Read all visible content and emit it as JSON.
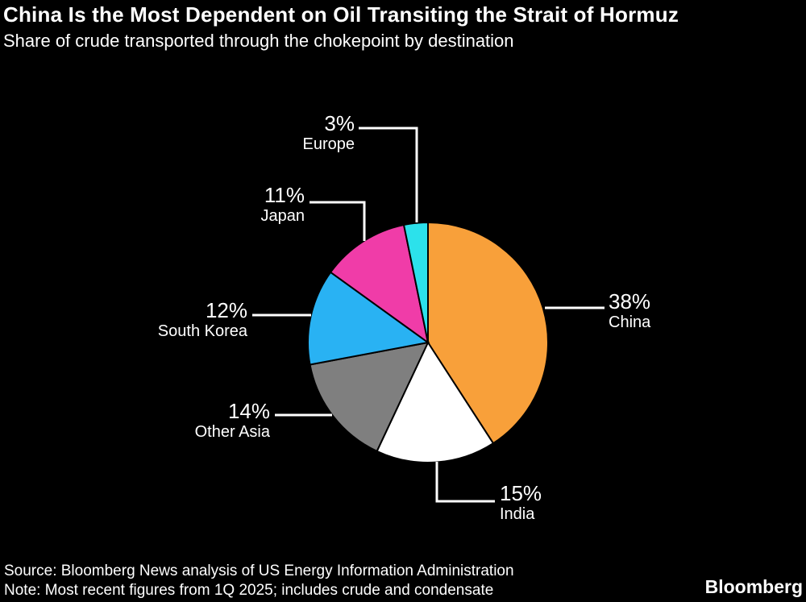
{
  "header": {
    "title": "China Is the Most Dependent on Oil Transiting the Strait of Hormuz",
    "subtitle": "Share of crude transported through the chokepoint by destination"
  },
  "chart_data": {
    "type": "pie",
    "title": "China Is the Most Dependent on Oil Transiting the Strait of Hormuz",
    "subtitle": "Share of crude transported through the chokepoint by destination",
    "unit": "%",
    "start_angle_deg": 0,
    "direction": "clockwise",
    "background": "#000000",
    "text_color": "#FFFFFF",
    "slices": [
      {
        "label": "China",
        "value": 38,
        "display": "38%",
        "color": "#F8A03A"
      },
      {
        "label": "India",
        "value": 15,
        "display": "15%",
        "color": "#FFFFFF"
      },
      {
        "label": "Other Asia",
        "value": 14,
        "display": "14%",
        "color": "#7F7F7F"
      },
      {
        "label": "South Korea",
        "value": 12,
        "display": "12%",
        "color": "#29B2F3"
      },
      {
        "label": "Japan",
        "value": 11,
        "display": "11%",
        "color": "#F03CA8"
      },
      {
        "label": "Europe",
        "value": 3,
        "display": "3%",
        "color": "#2CE1EB"
      }
    ]
  },
  "footer": {
    "source": "Source: Bloomberg News analysis of US Energy Information Administration",
    "note": "Note: Most recent figures from 1Q 2025; includes crude and condensate",
    "brand": "Bloomberg"
  }
}
